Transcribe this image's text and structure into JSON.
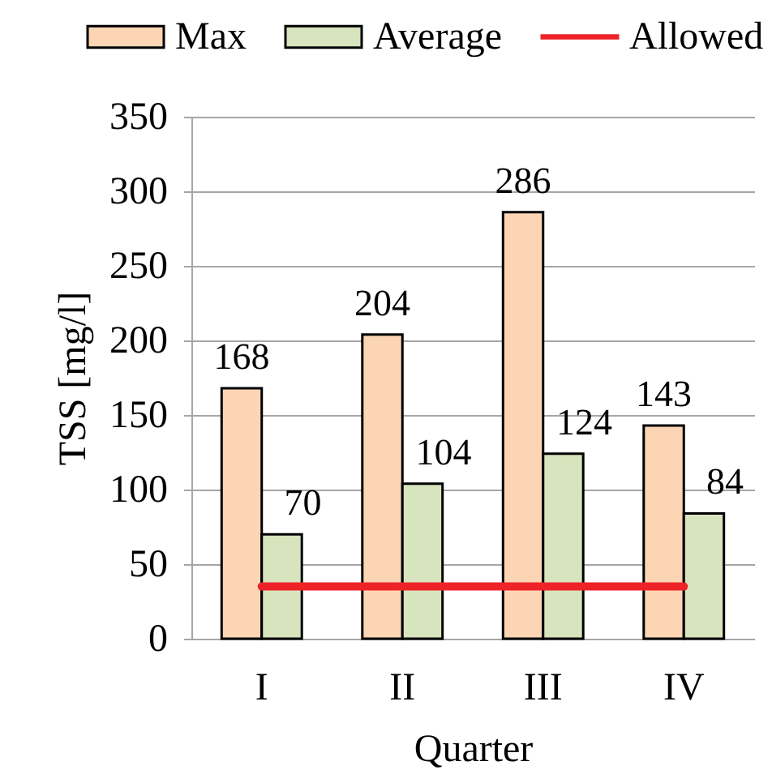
{
  "chart_data": {
    "type": "bar",
    "xlabel": "Quarter",
    "ylabel": "TSS [mg/l]",
    "categories": [
      "I",
      "II",
      "III",
      "IV"
    ],
    "series": [
      {
        "name": "Max",
        "color": "#fcd5b5",
        "values": [
          168,
          204,
          286,
          143
        ],
        "value_labels": [
          "168",
          "204",
          "286",
          "143"
        ]
      },
      {
        "name": "Average",
        "color": "#d7e4bd",
        "values": [
          70,
          104,
          124,
          84
        ],
        "value_labels": [
          "70",
          "104",
          "124",
          "84"
        ]
      },
      {
        "name": "Allowed",
        "type": "line",
        "color": "#ee2328",
        "values": [
          35,
          35,
          35,
          35
        ]
      }
    ],
    "ylim": [
      0,
      350
    ],
    "yticks": [
      0,
      50,
      100,
      150,
      200,
      250,
      300,
      350
    ],
    "grid": "y",
    "legend": "top"
  }
}
